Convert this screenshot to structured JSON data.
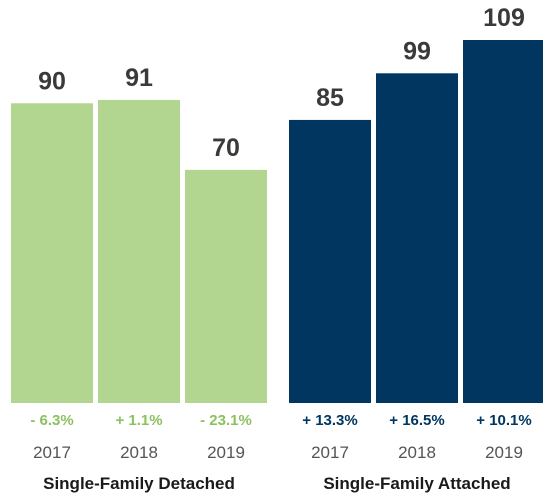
{
  "chart_data": {
    "type": "bar",
    "ylim": [
      0,
      109
    ],
    "groups": [
      {
        "name": "Single-Family Detached",
        "color": "#b2d58f",
        "change_color": "#8cc160",
        "categories": [
          "2017",
          "2018",
          "2019"
        ],
        "values": [
          90,
          91,
          70
        ],
        "value_labels": [
          "90",
          "91",
          "70"
        ],
        "changes": [
          "- 6.3%",
          "+ 1.1%",
          "- 23.1%"
        ]
      },
      {
        "name": "Single-Family Attached",
        "color": "#003660",
        "change_color": "#003660",
        "categories": [
          "2017",
          "2018",
          "2019"
        ],
        "values": [
          85,
          99,
          109
        ],
        "value_labels": [
          "85",
          "99",
          "109"
        ],
        "changes": [
          "+ 13.3%",
          "+ 16.5%",
          "+ 10.1%"
        ]
      }
    ]
  }
}
